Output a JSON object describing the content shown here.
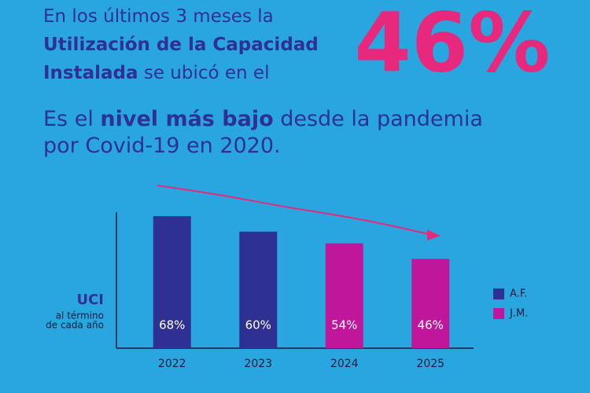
{
  "header": {
    "lines": [
      [
        {
          "text": "En los últimos 3 meses la",
          "bold": false
        }
      ],
      [
        {
          "text": "Utilización de la Capacidad",
          "bold": true
        }
      ],
      [
        {
          "text": "Instalada",
          "bold": true
        },
        {
          "text": " se ubicó en el",
          "bold": false
        }
      ]
    ],
    "highlight": "46%",
    "note": [
      [
        {
          "text": "Es el ",
          "bold": false
        },
        {
          "text": "nivel más bajo",
          "bold": true
        },
        {
          "text": " desde la pandemia",
          "bold": false
        }
      ],
      [
        {
          "text": "por Covid-19 en 2020.",
          "bold": false
        }
      ]
    ]
  },
  "chart_data": {
    "type": "bar",
    "y_label": [
      "UCI",
      "al término",
      "de cada año"
    ],
    "categories": [
      "2022",
      "2023",
      "2024",
      "2025"
    ],
    "series": [
      {
        "name": "A.F.",
        "color": "#2e3192",
        "values": [
          68,
          60,
          null,
          null
        ],
        "value_labels": [
          "68%",
          "60%",
          null,
          null
        ]
      },
      {
        "name": "J.M.",
        "color": "#c0169c",
        "values": [
          null,
          null,
          54,
          46
        ],
        "value_labels": [
          null,
          null,
          "54%",
          "46%"
        ]
      }
    ],
    "ylim": [
      0,
      70
    ]
  }
}
